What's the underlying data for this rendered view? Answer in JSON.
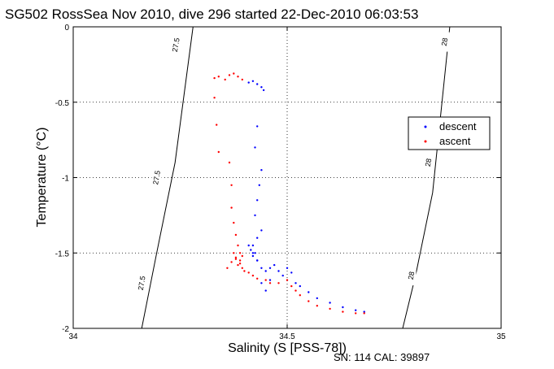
{
  "chart_data": {
    "type": "scatter",
    "title": "SG502 RossSea Nov 2010, dive 296 started 22-Dec-2010 06:03:53",
    "xlabel": "Salinity (S [PSS-78])",
    "ylabel": "Temperature (°C)",
    "xlim": [
      34,
      35
    ],
    "ylim": [
      -2,
      0
    ],
    "xticks": [
      "34",
      "34.5",
      "35"
    ],
    "yticks": [
      "0",
      "-0.5",
      "-1",
      "-1.5",
      "-2"
    ],
    "grid": true,
    "legend_position": "right",
    "footer": "SN: 114  CAL: 39897",
    "density_contours": [
      {
        "value": "27.5",
        "x": [
          34.16,
          34.195,
          34.238,
          34.28
        ],
        "y": [
          -2,
          -1.5,
          -0.9,
          0
        ]
      },
      {
        "value": "28",
        "x": [
          34.77,
          34.8,
          34.84,
          34.88
        ],
        "y": [
          -2,
          -1.65,
          -1.1,
          0
        ]
      }
    ],
    "contour_label_positions": [
      {
        "value": "27.5",
        "x": 34.24,
        "y": -0.12
      },
      {
        "value": "27.5",
        "x": 34.195,
        "y": -1.0
      },
      {
        "value": "27.5",
        "x": 34.16,
        "y": -1.7
      },
      {
        "value": "28",
        "x": 34.868,
        "y": -0.1
      },
      {
        "value": "28",
        "x": 34.83,
        "y": -0.9
      },
      {
        "value": "28",
        "x": 34.79,
        "y": -1.65
      }
    ],
    "series": [
      {
        "name": "descent",
        "color": "#0000ff",
        "x": [
          34.41,
          34.42,
          34.43,
          34.44,
          34.445,
          34.43,
          34.425,
          34.44,
          34.435,
          34.43,
          34.425,
          34.44,
          34.43,
          34.42,
          34.425,
          34.43,
          34.42,
          34.415,
          34.41,
          34.42,
          34.43,
          34.44,
          34.45,
          34.46,
          34.47,
          34.48,
          34.49,
          34.5,
          34.51,
          34.44,
          34.45,
          34.46,
          34.52,
          34.53,
          34.55,
          34.57,
          34.6,
          34.63,
          34.66,
          34.68
        ],
        "y": [
          -0.37,
          -0.36,
          -0.38,
          -0.4,
          -0.42,
          -0.66,
          -0.8,
          -0.95,
          -1.05,
          -1.15,
          -1.25,
          -1.35,
          -1.4,
          -1.45,
          -1.5,
          -1.55,
          -1.52,
          -1.48,
          -1.45,
          -1.5,
          -1.55,
          -1.6,
          -1.62,
          -1.6,
          -1.58,
          -1.62,
          -1.65,
          -1.6,
          -1.63,
          -1.7,
          -1.75,
          -1.68,
          -1.7,
          -1.72,
          -1.76,
          -1.8,
          -1.83,
          -1.86,
          -1.88,
          -1.89
        ]
      },
      {
        "name": "ascent",
        "color": "#ff0000",
        "x": [
          34.33,
          34.34,
          34.355,
          34.365,
          34.375,
          34.385,
          34.395,
          34.33,
          34.335,
          34.34,
          34.365,
          34.37,
          34.37,
          34.375,
          34.38,
          34.385,
          34.39,
          34.395,
          34.39,
          34.38,
          34.375,
          34.385,
          34.395,
          34.4,
          34.41,
          34.42,
          34.43,
          34.45,
          34.46,
          34.48,
          34.5,
          34.51,
          34.52,
          34.53,
          34.55,
          34.57,
          34.6,
          34.63,
          34.66,
          34.68,
          34.36,
          34.37,
          34.38,
          34.39
        ],
        "y": [
          -0.34,
          -0.33,
          -0.35,
          -0.32,
          -0.31,
          -0.33,
          -0.35,
          -0.47,
          -0.65,
          -0.83,
          -0.9,
          -1.05,
          -1.2,
          -1.3,
          -1.38,
          -1.45,
          -1.5,
          -1.52,
          -1.55,
          -1.53,
          -1.5,
          -1.58,
          -1.6,
          -1.62,
          -1.63,
          -1.65,
          -1.67,
          -1.68,
          -1.7,
          -1.7,
          -1.68,
          -1.72,
          -1.75,
          -1.78,
          -1.82,
          -1.85,
          -1.87,
          -1.89,
          -1.9,
          -1.9,
          -1.6,
          -1.56,
          -1.54,
          -1.57
        ]
      }
    ]
  }
}
